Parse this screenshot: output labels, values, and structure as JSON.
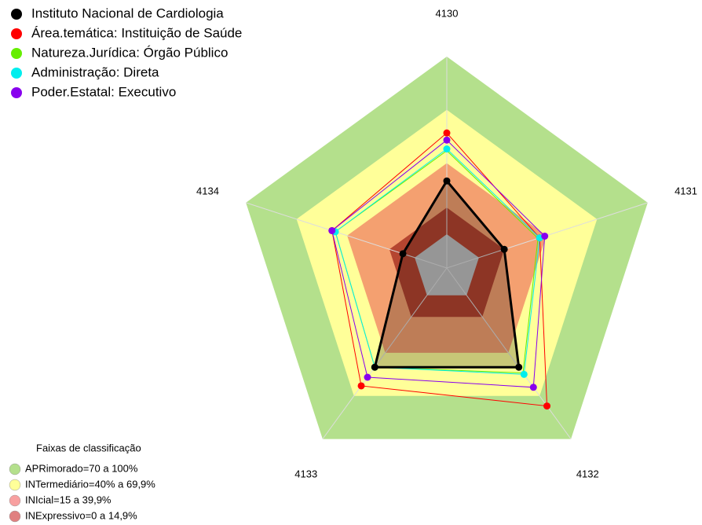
{
  "chart_data": {
    "type": "radar",
    "categories": [
      "4130",
      "4131",
      "4132",
      "4133",
      "4134"
    ],
    "rlim": [
      0,
      100
    ],
    "series": [
      {
        "name": "Instituto Nacional de Cardiologia",
        "color": "#000000",
        "values": [
          30,
          15,
          50,
          50,
          7
        ]
      },
      {
        "name": "Área.temática: Instituição de Saúde",
        "color": "#ff0000",
        "values": [
          57,
          36,
          77,
          63,
          49
        ]
      },
      {
        "name": "Natureza.Jurídica: Órgão Público",
        "color": "#66ee00",
        "values": [
          47,
          35,
          54,
          50,
          47
        ]
      },
      {
        "name": "Administração: Direta",
        "color": "#00eeee",
        "values": [
          48,
          36,
          55,
          50,
          47
        ]
      },
      {
        "name": "Poder.Estatal: Executivo",
        "color": "#8800ee",
        "values": [
          53,
          39,
          64,
          57,
          49
        ]
      }
    ],
    "bands_title": "Faixas de classificação",
    "bands": [
      {
        "label": "APRimorado=70 a 100%",
        "from": 70,
        "to": 100,
        "color": "#b4e08c",
        "fill": "#b4e08c"
      },
      {
        "label": "INTermediário=40% a 69,9%",
        "from": 40,
        "to": 70,
        "color": "#ffff99",
        "fill": "#ffff99"
      },
      {
        "label": "INIcial=15 a 39,9%",
        "from": 15,
        "to": 40,
        "color": "#f8a0a0",
        "fill": "#f4a070"
      },
      {
        "label": "INExpressivo=0 a 14,9%",
        "from": 0,
        "to": 15,
        "color": "#e08080",
        "fill": "#b54530"
      }
    ]
  }
}
